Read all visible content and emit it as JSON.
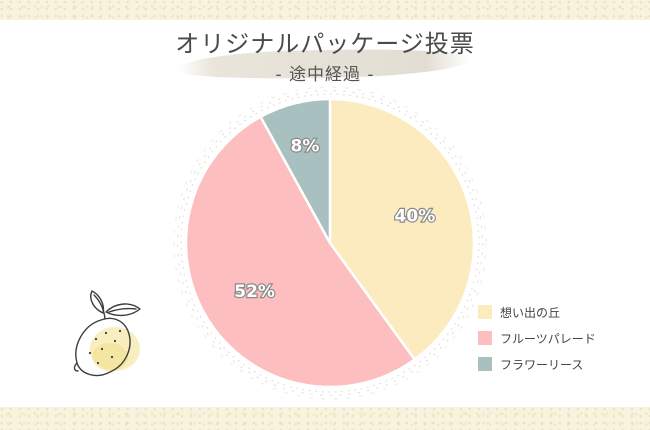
{
  "header": {
    "title": "オリジナルパッケージ投票",
    "subtitle": "- 途中経過 -"
  },
  "colors": {
    "background": "#ffffff",
    "band": "#f7f3df",
    "title_text": "#4a4a4a"
  },
  "chart_data": {
    "type": "pie",
    "categories": [
      "想い出の丘",
      "フルーツパレード",
      "フラワーリース"
    ],
    "values": [
      40,
      52,
      8
    ],
    "value_labels": [
      "40%",
      "52%",
      "8%"
    ],
    "colors": [
      "#fdebc0",
      "#fcbebe",
      "#a8c0bf"
    ],
    "start_angle_deg": 0,
    "direction": "clockwise",
    "legend_position": "right-bottom"
  },
  "decoration": {
    "icon": "lemon-icon"
  }
}
